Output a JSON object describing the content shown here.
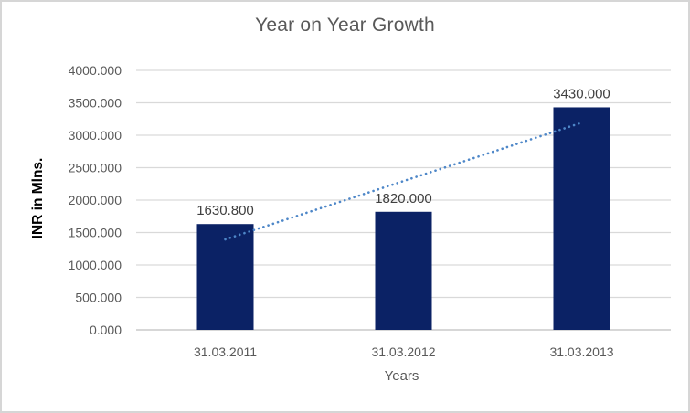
{
  "chart_data": {
    "type": "bar",
    "title": "Year on Year Growth",
    "xlabel": "Years",
    "ylabel": "INR in Mlns.",
    "categories": [
      "31.03.2011",
      "31.03.2012",
      "31.03.2013"
    ],
    "values": [
      1630.8,
      1820.0,
      3430.0
    ],
    "data_labels": [
      "1630.800",
      "1820.000",
      "3430.000"
    ],
    "y_ticks": [
      "0.000",
      "500.000",
      "1000.000",
      "1500.000",
      "2000.000",
      "2500.000",
      "3000.000",
      "3500.000",
      "4000.000"
    ],
    "ylim": [
      0,
      4000
    ],
    "grid": "horizontal",
    "legend": "none",
    "trendline": {
      "type": "linear",
      "style": "dotted",
      "endpoint_values": [
        1394,
        3193
      ]
    },
    "colors": {
      "bar": "#0b2265",
      "trendline": "#4e87c8",
      "gridline": "#d9d9d9",
      "axis_line": "#bfbfbf",
      "title_text": "#595959",
      "tick_text": "#595959",
      "data_label_text": "#404040",
      "y_axis_title_text": "#000000",
      "border": "#d6d6d6"
    }
  }
}
